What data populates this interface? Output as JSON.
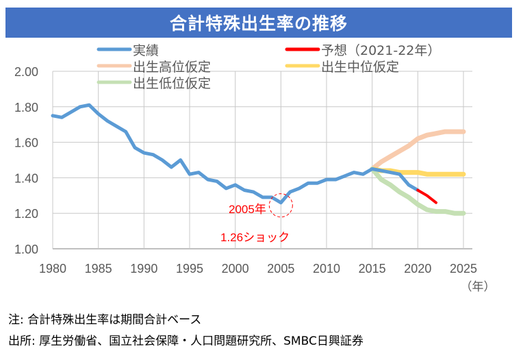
{
  "title": "合計特殊出生率の推移",
  "chart_data": {
    "type": "line",
    "title": "合計特殊出生率の推移",
    "xlabel": "（年）",
    "ylabel": "",
    "xlim": [
      1980,
      2025
    ],
    "ylim": [
      1.0,
      2.0
    ],
    "x_ticks": [
      "1980",
      "1985",
      "1990",
      "1995",
      "2000",
      "2005",
      "2010",
      "2015",
      "2020",
      "2025"
    ],
    "y_ticks": [
      "1.00",
      "1.20",
      "1.40",
      "1.60",
      "1.80",
      "2.00"
    ],
    "grid": true,
    "legend_position": "top",
    "series": [
      {
        "name": "実績",
        "color": "#5b9bd5",
        "x": [
          1980,
          1981,
          1982,
          1983,
          1984,
          1985,
          1986,
          1987,
          1988,
          1989,
          1990,
          1991,
          1992,
          1993,
          1994,
          1995,
          1996,
          1997,
          1998,
          1999,
          2000,
          2001,
          2002,
          2003,
          2004,
          2005,
          2006,
          2007,
          2008,
          2009,
          2010,
          2011,
          2012,
          2013,
          2014,
          2015,
          2016,
          2017,
          2018,
          2019,
          2020
        ],
        "y": [
          1.75,
          1.74,
          1.77,
          1.8,
          1.81,
          1.76,
          1.72,
          1.69,
          1.66,
          1.57,
          1.54,
          1.53,
          1.5,
          1.46,
          1.5,
          1.42,
          1.43,
          1.39,
          1.38,
          1.34,
          1.36,
          1.33,
          1.32,
          1.29,
          1.29,
          1.26,
          1.32,
          1.34,
          1.37,
          1.37,
          1.39,
          1.39,
          1.41,
          1.43,
          1.42,
          1.45,
          1.44,
          1.43,
          1.42,
          1.36,
          1.33
        ]
      },
      {
        "name": "予想（2021-22年）",
        "color": "#ff0000",
        "x": [
          2020,
          2021,
          2022
        ],
        "y": [
          1.33,
          1.3,
          1.26
        ]
      },
      {
        "name": "出生高位仮定",
        "color": "#f8cbad",
        "x": [
          2015,
          2016,
          2017,
          2018,
          2019,
          2020,
          2021,
          2022,
          2023,
          2024,
          2025
        ],
        "y": [
          1.45,
          1.49,
          1.52,
          1.55,
          1.58,
          1.62,
          1.64,
          1.65,
          1.66,
          1.66,
          1.66
        ]
      },
      {
        "name": "出生中位仮定",
        "color": "#ffd966",
        "x": [
          2015,
          2016,
          2017,
          2018,
          2019,
          2020,
          2021,
          2022,
          2023,
          2024,
          2025
        ],
        "y": [
          1.45,
          1.44,
          1.44,
          1.43,
          1.43,
          1.43,
          1.42,
          1.42,
          1.42,
          1.42,
          1.42
        ]
      },
      {
        "name": "出生低位仮定",
        "color": "#c5e0b4",
        "x": [
          2015,
          2016,
          2017,
          2018,
          2019,
          2020,
          2021,
          2022,
          2023,
          2024,
          2025
        ],
        "y": [
          1.45,
          1.39,
          1.36,
          1.32,
          1.29,
          1.25,
          1.22,
          1.21,
          1.21,
          1.2,
          1.2
        ]
      }
    ],
    "annotations": [
      {
        "text": "2005年",
        "color": "#ff0000"
      },
      {
        "text": "1.26ショック",
        "color": "#ff0000"
      }
    ]
  },
  "notes": {
    "note": "注: 合計特殊出生率は期間合計ベース",
    "source": "出所: 厚生労働省、国立社会保障・人口問題研究所、SMBC日興証券"
  }
}
